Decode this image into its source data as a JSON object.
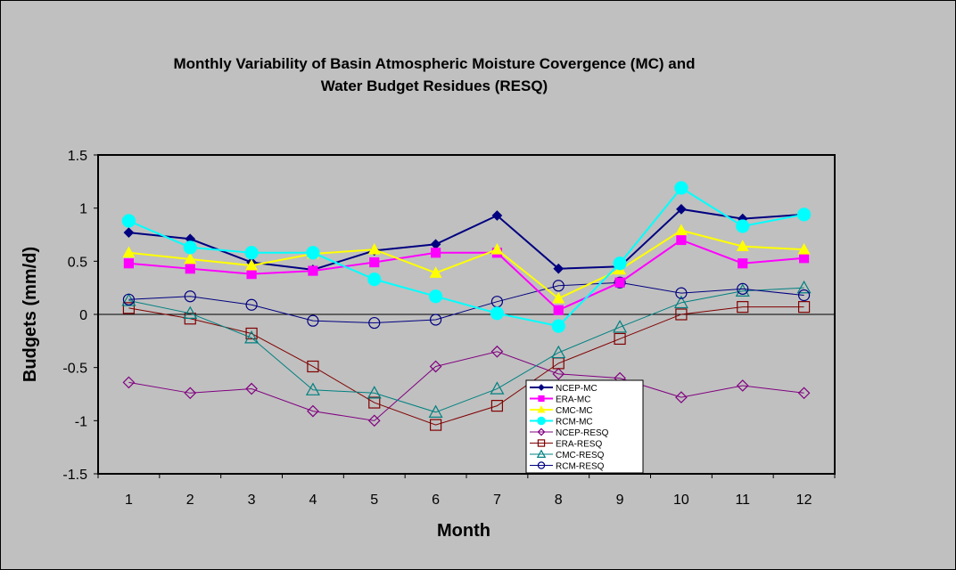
{
  "chart_data": {
    "type": "line",
    "title_line1": "Monthly Variability of Basin Atmospheric Moisture Covergence (MC) and",
    "title_line2": "Water Budget Residues (RESQ)",
    "xlabel": "Month",
    "ylabel": "Budgets (mm/d)",
    "ylim": [
      -1.5,
      1.5
    ],
    "y_ticks": [
      "-1.5",
      "-1",
      "-0.5",
      "0",
      "0.5",
      "1",
      "1.5"
    ],
    "categories": [
      "1",
      "2",
      "3",
      "4",
      "5",
      "6",
      "7",
      "8",
      "9",
      "10",
      "11",
      "12"
    ],
    "legend_position": "bottom-center",
    "plot_background": "#c0c0c0",
    "series": [
      {
        "name": "NCEP-MC",
        "color": "#000080",
        "marker": "diamond-filled",
        "values": [
          0.77,
          0.71,
          0.49,
          0.42,
          0.6,
          0.66,
          0.93,
          0.43,
          0.45,
          0.99,
          0.9,
          0.94
        ]
      },
      {
        "name": "ERA-MC",
        "color": "#ff00ff",
        "marker": "square-filled",
        "values": [
          0.48,
          0.43,
          0.38,
          0.41,
          0.49,
          0.58,
          0.58,
          0.04,
          0.3,
          0.7,
          0.48,
          0.53
        ]
      },
      {
        "name": "CMC-MC",
        "color": "#ffff00",
        "marker": "triangle-filled",
        "values": [
          0.58,
          0.52,
          0.46,
          0.57,
          0.61,
          0.39,
          0.61,
          0.15,
          0.42,
          0.79,
          0.64,
          0.61
        ]
      },
      {
        "name": "RCM-MC",
        "color": "#00ffff",
        "marker": "circle-filled",
        "values": [
          0.88,
          0.63,
          0.58,
          0.58,
          0.33,
          0.17,
          0.01,
          -0.11,
          0.48,
          1.19,
          0.83,
          0.94
        ]
      },
      {
        "name": "NCEP-RESQ",
        "color": "#800080",
        "marker": "diamond-open",
        "values": [
          -0.64,
          -0.74,
          -0.7,
          -0.91,
          -1.0,
          -0.49,
          -0.35,
          -0.56,
          -0.6,
          -0.78,
          -0.67,
          -0.74
        ]
      },
      {
        "name": "ERA-RESQ",
        "color": "#800000",
        "marker": "square-open",
        "values": [
          0.06,
          -0.04,
          -0.18,
          -0.49,
          -0.83,
          -1.04,
          -0.86,
          -0.46,
          -0.23,
          0.0,
          0.07,
          0.07
        ]
      },
      {
        "name": "CMC-RESQ",
        "color": "#008080",
        "marker": "triangle-open",
        "values": [
          0.13,
          0.01,
          -0.22,
          -0.71,
          -0.74,
          -0.92,
          -0.7,
          -0.36,
          -0.12,
          0.11,
          0.22,
          0.25
        ]
      },
      {
        "name": "RCM-RESQ",
        "color": "#000080",
        "marker": "circle-open",
        "values": [
          0.14,
          0.17,
          0.09,
          -0.06,
          -0.08,
          -0.05,
          0.12,
          0.27,
          0.3,
          0.2,
          0.24,
          0.18
        ]
      }
    ]
  }
}
